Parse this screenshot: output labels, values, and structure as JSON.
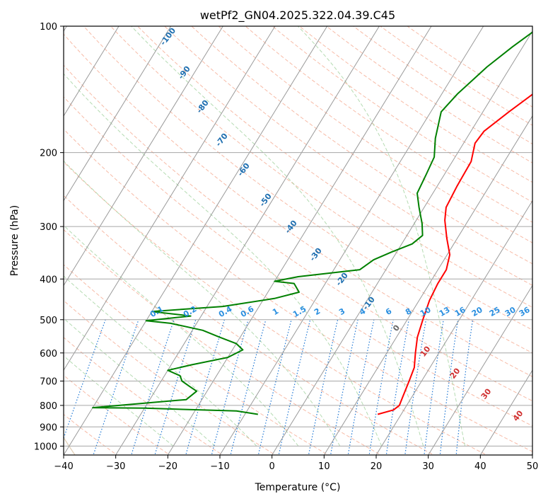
{
  "chart_data": {
    "type": "line",
    "title": "wetPf2_GN04.2025.322.04.39.C45",
    "xlabel": "Temperature (°C)",
    "ylabel": "Pressure (hPa)",
    "xlim": [
      -40,
      50
    ],
    "ylim": [
      1050,
      100
    ],
    "y_scale": "log",
    "x_ticks": [
      "−40",
      "−30",
      "−20",
      "−10",
      "0",
      "10",
      "20",
      "30",
      "40",
      "50"
    ],
    "y_ticks": [
      "100",
      "200",
      "300",
      "400",
      "500",
      "600",
      "700",
      "800",
      "900",
      "1000"
    ],
    "grid": true,
    "series": [
      {
        "color": "#ff0000",
        "points": [
          [
            15.5,
            840
          ],
          [
            18,
            820
          ],
          [
            18.6,
            800
          ],
          [
            18.2,
            760
          ],
          [
            17.6,
            700
          ],
          [
            17,
            650
          ],
          [
            15.5,
            600
          ],
          [
            14,
            550
          ],
          [
            13,
            500
          ],
          [
            12,
            450
          ],
          [
            11.6,
            410
          ],
          [
            11.6,
            380
          ],
          [
            10.5,
            350
          ],
          [
            8,
            320
          ],
          [
            5.5,
            290
          ],
          [
            4.2,
            270
          ],
          [
            3.8,
            240
          ],
          [
            3.6,
            210
          ],
          [
            2.2,
            190
          ],
          [
            2.5,
            178
          ],
          [
            5,
            160
          ],
          [
            7.5,
            145
          ],
          [
            9.5,
            130
          ],
          [
            11,
            118
          ],
          [
            13.5,
            108
          ],
          [
            16,
            100
          ]
        ]
      },
      {
        "color": "#008000",
        "points": [
          [
            -7.5,
            840
          ],
          [
            -12,
            825
          ],
          [
            -30,
            812
          ],
          [
            -40,
            810
          ],
          [
            -28,
            785
          ],
          [
            -23,
            775
          ],
          [
            -22,
            740
          ],
          [
            -24,
            720
          ],
          [
            -26,
            700
          ],
          [
            -27,
            680
          ],
          [
            -30,
            660
          ],
          [
            -26,
            640
          ],
          [
            -20,
            615
          ],
          [
            -18,
            590
          ],
          [
            -20,
            570
          ],
          [
            -24,
            550
          ],
          [
            -28,
            530
          ],
          [
            -35,
            510
          ],
          [
            -40,
            503
          ],
          [
            -32,
            490
          ],
          [
            -40,
            478
          ],
          [
            -27,
            465
          ],
          [
            -18,
            445
          ],
          [
            -14,
            430
          ],
          [
            -16,
            410
          ],
          [
            -20,
            405
          ],
          [
            -16,
            395
          ],
          [
            -5,
            380
          ],
          [
            -3.5,
            360
          ],
          [
            -1,
            345
          ],
          [
            2,
            330
          ],
          [
            3,
            315
          ],
          [
            1.5,
            295
          ],
          [
            -1,
            270
          ],
          [
            -3,
            250
          ],
          [
            -3.5,
            225
          ],
          [
            -4,
            205
          ],
          [
            -6,
            185
          ],
          [
            -7,
            172
          ],
          [
            -8,
            160
          ],
          [
            -7,
            145
          ],
          [
            -4.5,
            125
          ],
          [
            -2,
            112
          ],
          [
            1,
            100
          ]
        ]
      }
    ],
    "annotations": {
      "dry_adiabats": [
        "-100",
        "-90",
        "-80",
        "-70",
        "-60",
        "-50",
        "-40",
        "-30",
        "-20",
        "-10",
        "0",
        "10",
        "20",
        "30",
        "40"
      ],
      "mixing_ratio": [
        "0.1",
        "0.2",
        "0.4",
        "0.6",
        "1",
        "1.5",
        "2",
        "3",
        "4",
        "6",
        "8",
        "10",
        "13",
        "16",
        "20",
        "25",
        "30",
        "36"
      ]
    }
  }
}
